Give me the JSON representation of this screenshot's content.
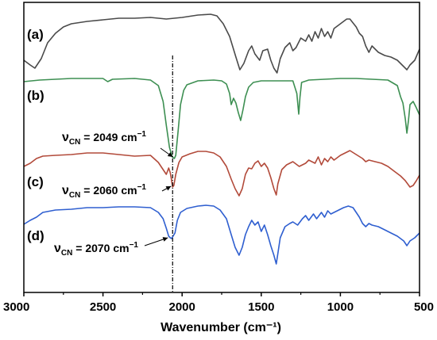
{
  "chart_data": {
    "type": "line",
    "xlabel": "Wavenumber (cm⁻¹)",
    "xlim": [
      3000,
      500
    ],
    "x_reversed": true,
    "ticks": [
      "3000",
      "2500",
      "2000",
      "1500",
      "1000",
      "500"
    ],
    "tick_values": [
      3000,
      2500,
      2000,
      1500,
      1000,
      500
    ],
    "y_axis_visible": false,
    "grid": false,
    "legend": "none",
    "reference_line": {
      "x": 2060,
      "style": "dash-dot",
      "color": "#000000"
    },
    "series": [
      {
        "name": "(a)",
        "color": "#4a4a4a",
        "points": [
          [
            3000,
            76
          ],
          [
            2960,
            82
          ],
          [
            2930,
            86
          ],
          [
            2890,
            74
          ],
          [
            2850,
            54
          ],
          [
            2800,
            42
          ],
          [
            2750,
            34
          ],
          [
            2700,
            30
          ],
          [
            2600,
            27
          ],
          [
            2500,
            25
          ],
          [
            2400,
            23
          ],
          [
            2300,
            23
          ],
          [
            2200,
            22
          ],
          [
            2100,
            24
          ],
          [
            2000,
            22
          ],
          [
            1900,
            19
          ],
          [
            1820,
            18
          ],
          [
            1780,
            20
          ],
          [
            1740,
            30
          ],
          [
            1700,
            46
          ],
          [
            1660,
            72
          ],
          [
            1635,
            88
          ],
          [
            1610,
            80
          ],
          [
            1580,
            64
          ],
          [
            1560,
            58
          ],
          [
            1540,
            68
          ],
          [
            1510,
            76
          ],
          [
            1490,
            64
          ],
          [
            1460,
            62
          ],
          [
            1440,
            76
          ],
          [
            1420,
            86
          ],
          [
            1400,
            92
          ],
          [
            1380,
            74
          ],
          [
            1350,
            60
          ],
          [
            1320,
            54
          ],
          [
            1300,
            64
          ],
          [
            1280,
            60
          ],
          [
            1250,
            48
          ],
          [
            1220,
            52
          ],
          [
            1200,
            44
          ],
          [
            1180,
            52
          ],
          [
            1160,
            40
          ],
          [
            1140,
            48
          ],
          [
            1120,
            36
          ],
          [
            1100,
            46
          ],
          [
            1080,
            40
          ],
          [
            1060,
            48
          ],
          [
            1040,
            36
          ],
          [
            1000,
            30
          ],
          [
            960,
            24
          ],
          [
            940,
            24
          ],
          [
            900,
            34
          ],
          [
            880,
            42
          ],
          [
            860,
            46
          ],
          [
            840,
            58
          ],
          [
            820,
            66
          ],
          [
            800,
            58
          ],
          [
            760,
            66
          ],
          [
            720,
            70
          ],
          [
            680,
            72
          ],
          [
            640,
            76
          ],
          [
            600,
            84
          ],
          [
            580,
            88
          ],
          [
            560,
            82
          ],
          [
            530,
            76
          ],
          [
            500,
            62
          ]
        ]
      },
      {
        "name": "(b)",
        "color": "#3d8f52",
        "points": [
          [
            3000,
            103
          ],
          [
            2900,
            101
          ],
          [
            2800,
            100
          ],
          [
            2700,
            99
          ],
          [
            2600,
            99
          ],
          [
            2500,
            99
          ],
          [
            2470,
            103
          ],
          [
            2440,
            100
          ],
          [
            2300,
            99
          ],
          [
            2200,
            101
          ],
          [
            2150,
            108
          ],
          [
            2120,
            128
          ],
          [
            2100,
            158
          ],
          [
            2080,
            186
          ],
          [
            2062,
            198
          ],
          [
            2049,
            200
          ],
          [
            2040,
            196
          ],
          [
            2025,
            165
          ],
          [
            2010,
            132
          ],
          [
            1990,
            114
          ],
          [
            1970,
            107
          ],
          [
            1900,
            102
          ],
          [
            1800,
            101
          ],
          [
            1750,
            102
          ],
          [
            1720,
            106
          ],
          [
            1700,
            118
          ],
          [
            1690,
            132
          ],
          [
            1675,
            124
          ],
          [
            1660,
            130
          ],
          [
            1645,
            142
          ],
          [
            1630,
            152
          ],
          [
            1615,
            138
          ],
          [
            1600,
            122
          ],
          [
            1580,
            110
          ],
          [
            1550,
            104
          ],
          [
            1500,
            102
          ],
          [
            1400,
            102
          ],
          [
            1300,
            102
          ],
          [
            1275,
            118
          ],
          [
            1263,
            144
          ],
          [
            1255,
            122
          ],
          [
            1245,
            104
          ],
          [
            1200,
            101
          ],
          [
            1100,
            100
          ],
          [
            1000,
            99
          ],
          [
            900,
            99
          ],
          [
            800,
            100
          ],
          [
            700,
            101
          ],
          [
            640,
            108
          ],
          [
            620,
            122
          ],
          [
            605,
            130
          ],
          [
            590,
            150
          ],
          [
            580,
            168
          ],
          [
            570,
            152
          ],
          [
            560,
            132
          ],
          [
            540,
            128
          ],
          [
            520,
            136
          ],
          [
            500,
            145
          ]
        ]
      },
      {
        "name": "(c)",
        "color": "#b24a3a",
        "points": [
          [
            3000,
            210
          ],
          [
            2960,
            206
          ],
          [
            2920,
            200
          ],
          [
            2880,
            197
          ],
          [
            2800,
            196
          ],
          [
            2700,
            195
          ],
          [
            2600,
            193
          ],
          [
            2500,
            193
          ],
          [
            2400,
            195
          ],
          [
            2300,
            197
          ],
          [
            2200,
            196
          ],
          [
            2150,
            205
          ],
          [
            2120,
            214
          ],
          [
            2100,
            220
          ],
          [
            2085,
            212
          ],
          [
            2075,
            218
          ],
          [
            2068,
            226
          ],
          [
            2060,
            236
          ],
          [
            2052,
            234
          ],
          [
            2040,
            220
          ],
          [
            2020,
            205
          ],
          [
            2000,
            198
          ],
          [
            1950,
            194
          ],
          [
            1900,
            191
          ],
          [
            1850,
            191
          ],
          [
            1800,
            193
          ],
          [
            1760,
            198
          ],
          [
            1720,
            210
          ],
          [
            1690,
            226
          ],
          [
            1665,
            238
          ],
          [
            1640,
            247
          ],
          [
            1620,
            238
          ],
          [
            1600,
            220
          ],
          [
            1580,
            212
          ],
          [
            1560,
            213
          ],
          [
            1540,
            206
          ],
          [
            1520,
            203
          ],
          [
            1500,
            210
          ],
          [
            1480,
            206
          ],
          [
            1460,
            212
          ],
          [
            1440,
            224
          ],
          [
            1420,
            238
          ],
          [
            1405,
            246
          ],
          [
            1395,
            232
          ],
          [
            1370,
            214
          ],
          [
            1340,
            208
          ],
          [
            1300,
            204
          ],
          [
            1260,
            210
          ],
          [
            1220,
            206
          ],
          [
            1200,
            202
          ],
          [
            1160,
            206
          ],
          [
            1140,
            198
          ],
          [
            1120,
            208
          ],
          [
            1100,
            200
          ],
          [
            1080,
            204
          ],
          [
            1060,
            198
          ],
          [
            1040,
            202
          ],
          [
            1000,
            196
          ],
          [
            960,
            192
          ],
          [
            940,
            190
          ],
          [
            900,
            195
          ],
          [
            860,
            200
          ],
          [
            840,
            204
          ],
          [
            820,
            202
          ],
          [
            780,
            204
          ],
          [
            740,
            206
          ],
          [
            700,
            210
          ],
          [
            660,
            216
          ],
          [
            620,
            222
          ],
          [
            590,
            228
          ],
          [
            560,
            236
          ],
          [
            540,
            234
          ],
          [
            520,
            228
          ],
          [
            500,
            221
          ]
        ]
      },
      {
        "name": "(d)",
        "color": "#2f5fd0",
        "points": [
          [
            3000,
            283
          ],
          [
            2960,
            278
          ],
          [
            2920,
            274
          ],
          [
            2880,
            268
          ],
          [
            2800,
            265
          ],
          [
            2700,
            264
          ],
          [
            2600,
            262
          ],
          [
            2500,
            262
          ],
          [
            2400,
            261
          ],
          [
            2300,
            261
          ],
          [
            2200,
            262
          ],
          [
            2150,
            268
          ],
          [
            2120,
            276
          ],
          [
            2100,
            288
          ],
          [
            2085,
            298
          ],
          [
            2075,
            300
          ],
          [
            2068,
            301
          ],
          [
            2060,
            299
          ],
          [
            2045,
            294
          ],
          [
            2030,
            278
          ],
          [
            2010,
            268
          ],
          [
            1970,
            263
          ],
          [
            1900,
            260
          ],
          [
            1850,
            259
          ],
          [
            1800,
            260
          ],
          [
            1760,
            265
          ],
          [
            1720,
            276
          ],
          [
            1690,
            296
          ],
          [
            1665,
            312
          ],
          [
            1640,
            322
          ],
          [
            1620,
            312
          ],
          [
            1600,
            296
          ],
          [
            1580,
            286
          ],
          [
            1560,
            278
          ],
          [
            1540,
            284
          ],
          [
            1520,
            280
          ],
          [
            1500,
            292
          ],
          [
            1480,
            284
          ],
          [
            1460,
            296
          ],
          [
            1440,
            310
          ],
          [
            1420,
            322
          ],
          [
            1405,
            333
          ],
          [
            1395,
            320
          ],
          [
            1380,
            300
          ],
          [
            1350,
            286
          ],
          [
            1320,
            282
          ],
          [
            1300,
            280
          ],
          [
            1270,
            284
          ],
          [
            1240,
            276
          ],
          [
            1220,
            272
          ],
          [
            1200,
            278
          ],
          [
            1170,
            270
          ],
          [
            1150,
            276
          ],
          [
            1120,
            268
          ],
          [
            1100,
            274
          ],
          [
            1080,
            266
          ],
          [
            1060,
            270
          ],
          [
            1020,
            266
          ],
          [
            980,
            262
          ],
          [
            950,
            260
          ],
          [
            920,
            262
          ],
          [
            900,
            268
          ],
          [
            880,
            274
          ],
          [
            860,
            282
          ],
          [
            840,
            286
          ],
          [
            820,
            282
          ],
          [
            800,
            284
          ],
          [
            760,
            286
          ],
          [
            720,
            290
          ],
          [
            680,
            294
          ],
          [
            640,
            298
          ],
          [
            600,
            304
          ],
          [
            580,
            310
          ],
          [
            560,
            304
          ],
          [
            530,
            300
          ],
          [
            500,
            294
          ]
        ]
      }
    ],
    "panel_labels": [
      "(a)",
      "(b)",
      "(c)",
      "(d)"
    ],
    "annotations": [
      {
        "symbol": "ν",
        "subscript": "CN",
        "text": " = 2049 cm",
        "sup": "−1",
        "target_x": 2049
      },
      {
        "symbol": "ν",
        "subscript": "CN",
        "text": " = 2060 cm",
        "sup": "−1",
        "target_x": 2060
      },
      {
        "symbol": "ν",
        "subscript": "CN",
        "text": " = 2070 cm",
        "sup": "−1",
        "target_x": 2070
      }
    ]
  }
}
